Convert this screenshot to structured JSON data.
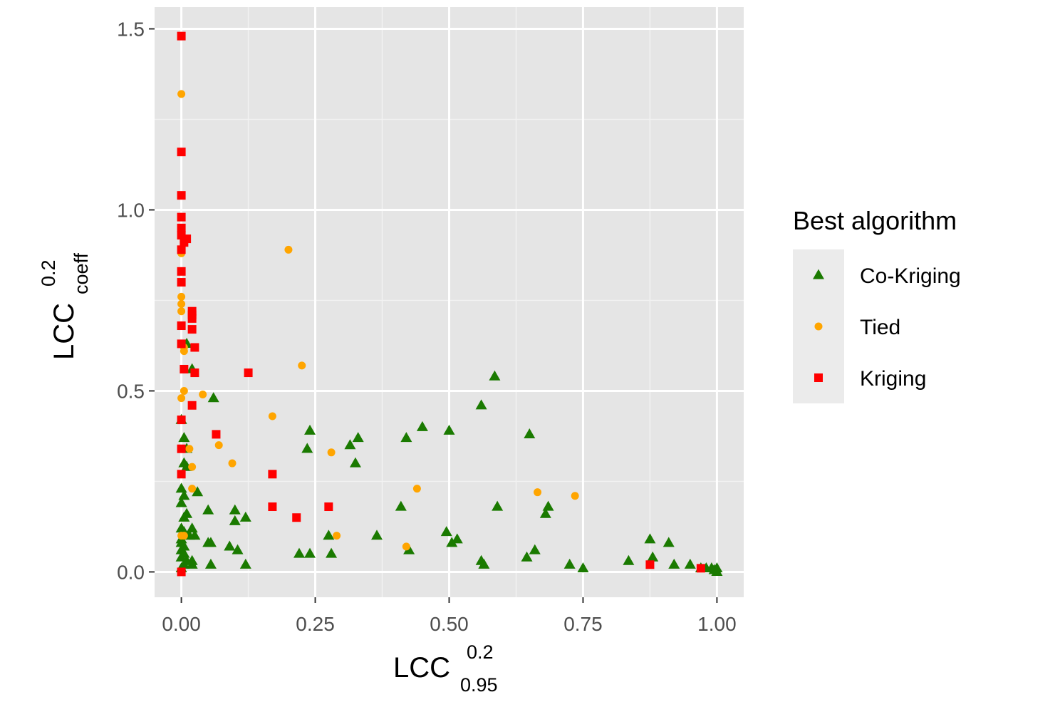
{
  "chart_data": {
    "type": "scatter",
    "x_label": {
      "base": "LCC",
      "sup": "0.2",
      "sub": "0.95"
    },
    "y_label": {
      "base": "LCC",
      "sup": "0.2",
      "sub": "coeff"
    },
    "xlim": [
      -0.05,
      1.05
    ],
    "ylim": [
      -0.07,
      1.56
    ],
    "x_ticks": [
      0,
      0.25,
      0.5,
      0.75,
      1.0
    ],
    "x_tick_labels": [
      "0.00",
      "0.25",
      "0.50",
      "0.75",
      "1.00"
    ],
    "y_ticks": [
      0,
      0.5,
      1.0,
      1.5
    ],
    "y_tick_labels": [
      "0.0",
      "0.5",
      "1.0",
      "1.5"
    ],
    "grid": true,
    "legend": {
      "title": "Best algorithm",
      "position": "right"
    },
    "series": [
      {
        "name": "Co-Kriging",
        "marker": "triangle",
        "color": "#1a7a00",
        "points": [
          [
            0.0,
            0.42
          ],
          [
            0.005,
            0.37
          ],
          [
            0.01,
            0.34
          ],
          [
            0.005,
            0.3
          ],
          [
            0.01,
            0.29
          ],
          [
            0.0,
            0.23
          ],
          [
            0.005,
            0.21
          ],
          [
            0.0,
            0.19
          ],
          [
            0.01,
            0.16
          ],
          [
            0.005,
            0.15
          ],
          [
            0.0,
            0.12
          ],
          [
            0.005,
            0.11
          ],
          [
            0.0,
            0.09
          ],
          [
            0.0,
            0.08
          ],
          [
            0.005,
            0.07
          ],
          [
            0.0,
            0.06
          ],
          [
            0.005,
            0.05
          ],
          [
            0.0,
            0.04
          ],
          [
            0.01,
            0.03
          ],
          [
            0.005,
            0.02
          ],
          [
            0.0,
            0.01
          ],
          [
            0.015,
            0.1
          ],
          [
            0.02,
            0.12
          ],
          [
            0.025,
            0.1
          ],
          [
            0.03,
            0.22
          ],
          [
            0.02,
            0.03
          ],
          [
            0.02,
            0.02
          ],
          [
            0.06,
            0.48
          ],
          [
            0.02,
            0.56
          ],
          [
            0.01,
            0.63
          ],
          [
            0.05,
            0.17
          ],
          [
            0.05,
            0.08
          ],
          [
            0.055,
            0.08
          ],
          [
            0.055,
            0.02
          ],
          [
            0.09,
            0.07
          ],
          [
            0.1,
            0.17
          ],
          [
            0.1,
            0.14
          ],
          [
            0.105,
            0.06
          ],
          [
            0.12,
            0.15
          ],
          [
            0.12,
            0.02
          ],
          [
            0.22,
            0.05
          ],
          [
            0.235,
            0.34
          ],
          [
            0.24,
            0.39
          ],
          [
            0.24,
            0.05
          ],
          [
            0.275,
            0.1
          ],
          [
            0.28,
            0.05
          ],
          [
            0.315,
            0.35
          ],
          [
            0.325,
            0.3
          ],
          [
            0.33,
            0.37
          ],
          [
            0.365,
            0.1
          ],
          [
            0.41,
            0.18
          ],
          [
            0.42,
            0.37
          ],
          [
            0.425,
            0.06
          ],
          [
            0.45,
            0.4
          ],
          [
            0.495,
            0.11
          ],
          [
            0.5,
            0.39
          ],
          [
            0.505,
            0.08
          ],
          [
            0.515,
            0.09
          ],
          [
            0.56,
            0.46
          ],
          [
            0.56,
            0.03
          ],
          [
            0.565,
            0.02
          ],
          [
            0.585,
            0.54
          ],
          [
            0.59,
            0.18
          ],
          [
            0.645,
            0.04
          ],
          [
            0.65,
            0.38
          ],
          [
            0.66,
            0.06
          ],
          [
            0.68,
            0.16
          ],
          [
            0.685,
            0.18
          ],
          [
            0.725,
            0.02
          ],
          [
            0.75,
            0.01
          ],
          [
            0.835,
            0.03
          ],
          [
            0.875,
            0.09
          ],
          [
            0.88,
            0.04
          ],
          [
            0.91,
            0.08
          ],
          [
            0.92,
            0.02
          ],
          [
            0.95,
            0.02
          ],
          [
            0.97,
            0.01
          ],
          [
            0.98,
            0.01
          ],
          [
            0.99,
            0.01
          ],
          [
            1.0,
            0.01
          ],
          [
            0.995,
            0.005
          ],
          [
            1.0,
            0.0
          ]
        ]
      },
      {
        "name": "Tied",
        "marker": "circle",
        "color": "#ffa500",
        "points": [
          [
            0.0,
            1.32
          ],
          [
            0.0,
            0.88
          ],
          [
            0.0,
            0.8
          ],
          [
            0.0,
            0.76
          ],
          [
            0.0,
            0.74
          ],
          [
            0.0,
            0.72
          ],
          [
            0.0,
            0.68
          ],
          [
            0.005,
            0.62
          ],
          [
            0.005,
            0.61
          ],
          [
            0.005,
            0.5
          ],
          [
            0.0,
            0.48
          ],
          [
            0.2,
            0.89
          ],
          [
            0.225,
            0.57
          ],
          [
            0.04,
            0.49
          ],
          [
            0.17,
            0.43
          ],
          [
            0.07,
            0.35
          ],
          [
            0.015,
            0.34
          ],
          [
            0.02,
            0.29
          ],
          [
            0.095,
            0.3
          ],
          [
            0.28,
            0.33
          ],
          [
            0.02,
            0.23
          ],
          [
            0.44,
            0.23
          ],
          [
            0.665,
            0.22
          ],
          [
            0.735,
            0.21
          ],
          [
            0.29,
            0.1
          ],
          [
            0.42,
            0.07
          ],
          [
            0.0,
            0.1
          ],
          [
            0.005,
            0.1
          ]
        ]
      },
      {
        "name": "Kriging",
        "marker": "square",
        "color": "#ff0000",
        "points": [
          [
            0.0,
            1.48
          ],
          [
            0.0,
            1.16
          ],
          [
            0.0,
            1.04
          ],
          [
            0.0,
            0.98
          ],
          [
            0.0,
            0.95
          ],
          [
            0.0,
            0.93
          ],
          [
            0.005,
            0.91
          ],
          [
            0.01,
            0.92
          ],
          [
            0.0,
            0.89
          ],
          [
            0.0,
            0.83
          ],
          [
            0.0,
            0.8
          ],
          [
            0.02,
            0.72
          ],
          [
            0.02,
            0.71
          ],
          [
            0.02,
            0.7
          ],
          [
            0.02,
            0.67
          ],
          [
            0.0,
            0.68
          ],
          [
            0.025,
            0.62
          ],
          [
            0.0,
            0.63
          ],
          [
            0.005,
            0.56
          ],
          [
            0.025,
            0.55
          ],
          [
            0.125,
            0.55
          ],
          [
            0.02,
            0.46
          ],
          [
            0.0,
            0.42
          ],
          [
            0.065,
            0.38
          ],
          [
            0.0,
            0.34
          ],
          [
            0.0,
            0.27
          ],
          [
            0.17,
            0.27
          ],
          [
            0.17,
            0.18
          ],
          [
            0.215,
            0.15
          ],
          [
            0.275,
            0.18
          ],
          [
            0.875,
            0.02
          ],
          [
            0.97,
            0.01
          ],
          [
            0.0,
            0.0
          ]
        ]
      }
    ]
  }
}
